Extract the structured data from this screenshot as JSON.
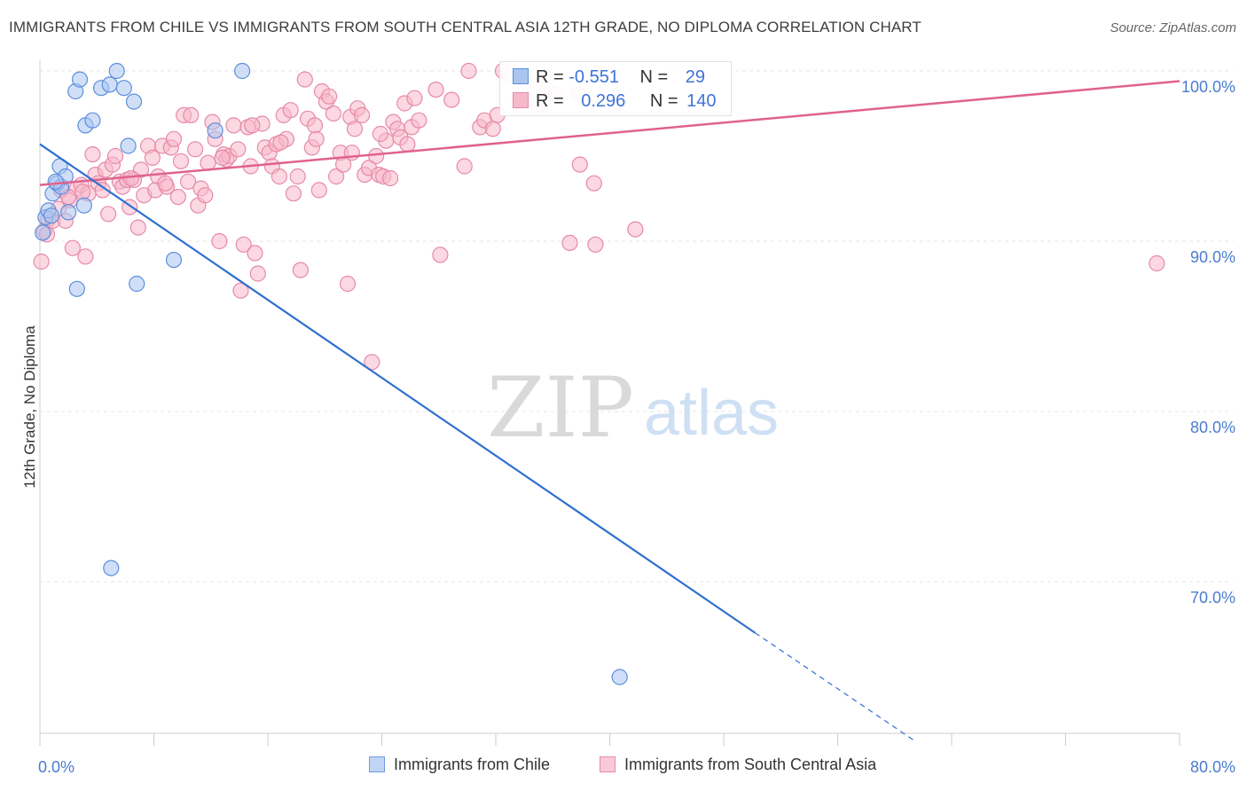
{
  "header": {
    "title": "IMMIGRANTS FROM CHILE VS IMMIGRANTS FROM SOUTH CENTRAL ASIA 12TH GRADE, NO DIPLOMA CORRELATION CHART",
    "source": "Source: ZipAtlas.com"
  },
  "watermark": {
    "zip": "ZIP",
    "atlas": "atlas"
  },
  "legend_stats": {
    "chile": {
      "r_label": "R =",
      "r_value": "-0.551",
      "n_label": "N =",
      "n_value": "29"
    },
    "asia": {
      "r_label": "R =",
      "r_value": "0.296",
      "n_label": "N =",
      "n_value": "140"
    }
  },
  "bottom_legend": {
    "chile": "Immigrants from Chile",
    "asia": "Immigrants from South Central Asia"
  },
  "colors": {
    "chile_fill": "#a9c5f0",
    "chile_stroke": "#5b8fdc",
    "chile_line": "#2f6fd0",
    "asia_fill": "#f7b8cb",
    "asia_stroke": "#e68aa8",
    "asia_line": "#e0628c",
    "tick_label": "#4a7cd0",
    "grid": "#e4e4e4"
  },
  "chart_data": {
    "type": "scatter",
    "title": "IMMIGRANTS FROM CHILE VS IMMIGRANTS FROM SOUTH CENTRAL ASIA 12TH GRADE, NO DIPLOMA CORRELATION CHART",
    "ylabel": "12th Grade, No Diploma",
    "xlabel": "",
    "xlim": [
      0,
      80
    ],
    "ylim": [
      60,
      100.8
    ],
    "x_tick_labels": {
      "left": "0.0%",
      "right": "80.0%"
    },
    "y_ticks": [
      {
        "value": 100,
        "label": "100.0%"
      },
      {
        "value": 90,
        "label": "90.0%"
      },
      {
        "value": 80,
        "label": "80.0%"
      },
      {
        "value": 70,
        "label": "70.0%"
      }
    ],
    "grid": true,
    "legend_placement": "top-center",
    "series": [
      {
        "name": "Immigrants from Chile",
        "points": [
          [
            0.2,
            90.5
          ],
          [
            0.4,
            91.4
          ],
          [
            0.6,
            91.8
          ],
          [
            0.9,
            92.8
          ],
          [
            1.2,
            93.4
          ],
          [
            1.4,
            94.4
          ],
          [
            1.5,
            93.2
          ],
          [
            1.8,
            93.8
          ],
          [
            2.0,
            91.7
          ],
          [
            2.5,
            98.8
          ],
          [
            2.8,
            99.5
          ],
          [
            2.6,
            87.2
          ],
          [
            3.2,
            96.8
          ],
          [
            3.7,
            97.1
          ],
          [
            4.3,
            99.0
          ],
          [
            4.9,
            99.2
          ],
          [
            5.4,
            100.0
          ],
          [
            5.9,
            99.0
          ],
          [
            6.2,
            95.6
          ],
          [
            6.6,
            98.2
          ],
          [
            6.8,
            87.5
          ],
          [
            3.1,
            92.1
          ],
          [
            9.4,
            88.9
          ],
          [
            12.3,
            96.5
          ],
          [
            14.2,
            100.0
          ],
          [
            5.0,
            70.8
          ],
          [
            40.7,
            64.4
          ],
          [
            0.8,
            91.5
          ],
          [
            1.1,
            93.5
          ]
        ]
      },
      {
        "name": "Immigrants from South Central Asia",
        "points": [
          [
            0.1,
            88.8
          ],
          [
            0.3,
            90.6
          ],
          [
            0.6,
            91.3
          ],
          [
            0.9,
            91.2
          ],
          [
            1.3,
            91.9
          ],
          [
            1.5,
            93.0
          ],
          [
            1.8,
            91.2
          ],
          [
            2.1,
            92.4
          ],
          [
            2.3,
            89.6
          ],
          [
            2.6,
            93.1
          ],
          [
            2.9,
            93.3
          ],
          [
            3.2,
            89.1
          ],
          [
            3.4,
            92.8
          ],
          [
            3.7,
            95.1
          ],
          [
            3.9,
            93.9
          ],
          [
            4.1,
            93.4
          ],
          [
            4.4,
            93.0
          ],
          [
            4.6,
            94.2
          ],
          [
            4.8,
            91.6
          ],
          [
            5.1,
            94.5
          ],
          [
            5.3,
            95.0
          ],
          [
            5.6,
            93.5
          ],
          [
            5.8,
            93.2
          ],
          [
            6.1,
            93.6
          ],
          [
            6.3,
            92.0
          ],
          [
            6.6,
            93.6
          ],
          [
            6.9,
            90.8
          ],
          [
            7.1,
            94.2
          ],
          [
            7.3,
            92.7
          ],
          [
            7.6,
            95.6
          ],
          [
            7.9,
            94.9
          ],
          [
            8.1,
            93.0
          ],
          [
            8.3,
            93.8
          ],
          [
            8.6,
            95.6
          ],
          [
            8.9,
            93.2
          ],
          [
            9.2,
            95.5
          ],
          [
            9.4,
            96.0
          ],
          [
            9.7,
            92.6
          ],
          [
            9.9,
            94.7
          ],
          [
            10.1,
            97.4
          ],
          [
            10.4,
            93.5
          ],
          [
            10.6,
            97.4
          ],
          [
            10.9,
            95.4
          ],
          [
            11.1,
            92.1
          ],
          [
            11.3,
            93.1
          ],
          [
            11.6,
            92.7
          ],
          [
            11.8,
            94.6
          ],
          [
            12.1,
            97.0
          ],
          [
            12.3,
            96.0
          ],
          [
            12.6,
            90.0
          ],
          [
            12.9,
            95.1
          ],
          [
            13.1,
            94.8
          ],
          [
            13.3,
            95.0
          ],
          [
            13.6,
            96.8
          ],
          [
            13.9,
            95.4
          ],
          [
            14.1,
            87.1
          ],
          [
            14.3,
            89.8
          ],
          [
            14.6,
            96.7
          ],
          [
            14.8,
            94.4
          ],
          [
            15.1,
            89.3
          ],
          [
            15.3,
            88.1
          ],
          [
            15.6,
            96.9
          ],
          [
            15.8,
            95.5
          ],
          [
            16.1,
            95.2
          ],
          [
            16.3,
            94.4
          ],
          [
            16.6,
            95.7
          ],
          [
            16.8,
            93.8
          ],
          [
            17.1,
            97.4
          ],
          [
            17.3,
            96.0
          ],
          [
            17.6,
            97.7
          ],
          [
            17.8,
            92.8
          ],
          [
            18.1,
            93.8
          ],
          [
            18.3,
            88.3
          ],
          [
            18.6,
            99.5
          ],
          [
            18.8,
            97.2
          ],
          [
            19.1,
            95.5
          ],
          [
            19.3,
            96.8
          ],
          [
            19.6,
            93.0
          ],
          [
            19.8,
            98.8
          ],
          [
            20.1,
            98.2
          ],
          [
            20.3,
            98.5
          ],
          [
            20.6,
            97.5
          ],
          [
            20.8,
            93.8
          ],
          [
            21.1,
            95.2
          ],
          [
            21.3,
            94.5
          ],
          [
            21.6,
            87.5
          ],
          [
            21.8,
            97.3
          ],
          [
            22.1,
            96.6
          ],
          [
            22.3,
            97.8
          ],
          [
            22.6,
            97.4
          ],
          [
            22.8,
            93.9
          ],
          [
            23.1,
            94.3
          ],
          [
            23.3,
            82.9
          ],
          [
            23.6,
            95.0
          ],
          [
            23.8,
            93.9
          ],
          [
            24.1,
            93.8
          ],
          [
            24.3,
            95.9
          ],
          [
            24.6,
            93.7
          ],
          [
            24.8,
            97.0
          ],
          [
            25.1,
            96.6
          ],
          [
            25.3,
            96.1
          ],
          [
            25.6,
            98.1
          ],
          [
            25.8,
            95.7
          ],
          [
            26.1,
            96.7
          ],
          [
            26.3,
            98.4
          ],
          [
            26.6,
            97.1
          ],
          [
            27.8,
            98.9
          ],
          [
            28.1,
            89.2
          ],
          [
            28.9,
            98.3
          ],
          [
            29.8,
            94.4
          ],
          [
            30.1,
            100.0
          ],
          [
            30.9,
            96.7
          ],
          [
            31.2,
            97.1
          ],
          [
            31.8,
            96.6
          ],
          [
            32.1,
            97.4
          ],
          [
            32.5,
            100.0
          ],
          [
            32.9,
            99.8
          ],
          [
            33.6,
            98.2
          ],
          [
            34.1,
            99.4
          ],
          [
            35.0,
            98.0
          ],
          [
            35.6,
            98.9
          ],
          [
            36.2,
            98.6
          ],
          [
            37.8,
            98.6
          ],
          [
            40.6,
            98.2
          ],
          [
            37.2,
            89.9
          ],
          [
            37.9,
            94.5
          ],
          [
            38.9,
            93.4
          ],
          [
            39.0,
            89.8
          ],
          [
            41.8,
            90.7
          ],
          [
            78.4,
            88.7
          ],
          [
            0.5,
            90.4
          ],
          [
            2.0,
            92.6
          ],
          [
            3.0,
            92.9
          ],
          [
            6.4,
            93.7
          ],
          [
            8.8,
            93.4
          ],
          [
            12.8,
            94.9
          ],
          [
            14.9,
            96.8
          ],
          [
            16.9,
            95.8
          ],
          [
            19.4,
            96.0
          ],
          [
            21.9,
            95.2
          ],
          [
            23.9,
            96.3
          ]
        ]
      }
    ],
    "trend_lines": [
      {
        "series": "Immigrants from Chile",
        "from": [
          0,
          95.7
        ],
        "to": [
          50.2,
          67.0
        ],
        "dashed_to": [
          61.5,
          60.6
        ]
      },
      {
        "series": "Immigrants from South Central Asia",
        "from": [
          0,
          93.3
        ],
        "to": [
          80,
          99.4
        ]
      }
    ]
  }
}
